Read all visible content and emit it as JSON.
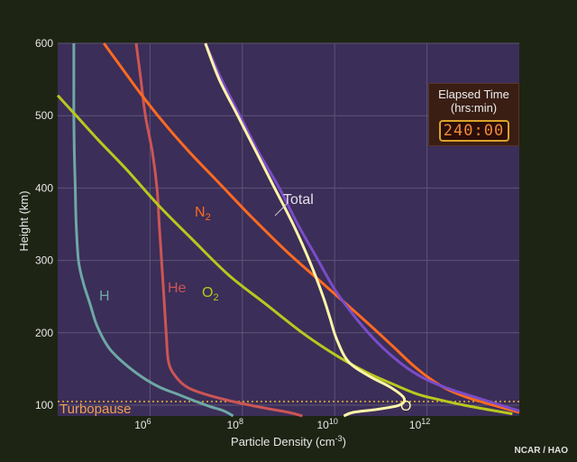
{
  "chart_data": {
    "type": "line",
    "xscale": "log",
    "xlim_exponent": [
      4,
      14
    ],
    "ylim": [
      85,
      600
    ],
    "xlabel": "Particle Density (cm",
    "xlabel_exp": "-3",
    "xlabel_suffix": ")",
    "ylabel": "Height (km)",
    "yticks": [
      "600",
      "500",
      "400",
      "300",
      "200",
      "100"
    ],
    "ytick_values": [
      600,
      500,
      400,
      300,
      200,
      100
    ],
    "xticks": [
      {
        "base": "10",
        "exp": "6",
        "value": 6
      },
      {
        "base": "10",
        "exp": "8",
        "value": 8
      },
      {
        "base": "10",
        "exp": "10",
        "value": 10
      },
      {
        "base": "10",
        "exp": "12",
        "value": 12
      }
    ],
    "turbopause": {
      "label": "Turbopause",
      "height": 105
    },
    "series": [
      {
        "name": "H",
        "color": "#6ea8a4",
        "log_density": [
          4.35,
          4.35,
          4.35,
          4.36,
          4.38,
          4.4,
          4.45,
          4.55,
          4.7,
          4.85,
          5.1,
          5.4,
          5.8,
          6.2,
          6.6,
          7.0,
          7.3,
          7.6,
          7.8
        ],
        "height": [
          600,
          550,
          500,
          450,
          400,
          350,
          300,
          270,
          240,
          210,
          180,
          160,
          140,
          125,
          115,
          105,
          98,
          92,
          85
        ]
      },
      {
        "name": "He",
        "color": "#cc5555",
        "log_density": [
          5.7,
          5.8,
          5.9,
          6.05,
          6.15,
          6.2,
          6.25,
          6.3,
          6.35,
          6.4,
          6.55,
          6.8,
          7.2,
          7.8,
          8.4,
          9.0,
          9.3
        ],
        "height": [
          600,
          550,
          500,
          450,
          400,
          350,
          300,
          250,
          200,
          160,
          140,
          125,
          115,
          105,
          97,
          90,
          85
        ]
      },
      {
        "name": "N2",
        "label_main": "N",
        "label_sub": "2",
        "color": "#ff6a20",
        "log_density": [
          5.0,
          5.4,
          5.8,
          6.3,
          6.85,
          7.45,
          8.2,
          9.0,
          9.8,
          10.6,
          11.2,
          11.7,
          12.1,
          12.5,
          13.0,
          13.6,
          14.0
        ],
        "height": [
          600,
          565,
          530,
          490,
          450,
          410,
          360,
          310,
          265,
          220,
          185,
          155,
          135,
          120,
          108,
          97,
          90
        ]
      },
      {
        "name": "O2",
        "label_main": "O",
        "label_sub": "2",
        "color": "#b8c81e",
        "log_density": [
          4.0,
          4.4,
          4.9,
          5.5,
          6.2,
          6.9,
          7.7,
          8.5,
          9.3,
          10.0,
          10.7,
          11.3,
          11.8,
          12.3,
          12.8,
          13.4,
          13.85
        ],
        "height": [
          528,
          500,
          465,
          425,
          375,
          330,
          280,
          240,
          200,
          170,
          145,
          128,
          115,
          107,
          100,
          93,
          88
        ]
      },
      {
        "name": "O",
        "color": "#fff5a8",
        "log_density": [
          7.2,
          7.5,
          7.9,
          8.3,
          8.7,
          9.1,
          9.45,
          9.75,
          9.9,
          10.05,
          10.3,
          10.75,
          11.2,
          11.5,
          11.4,
          10.9,
          10.4,
          10.2
        ],
        "height": [
          600,
          550,
          500,
          450,
          400,
          350,
          300,
          250,
          220,
          190,
          160,
          140,
          125,
          110,
          100,
          94,
          90,
          85
        ]
      },
      {
        "name": "Total",
        "color": "#7a4cc8",
        "log_density": [
          7.2,
          7.55,
          7.95,
          8.35,
          8.8,
          9.2,
          9.6,
          10.0,
          10.4,
          10.8,
          11.2,
          11.6,
          12.0,
          12.5,
          13.1,
          13.6,
          14.0
        ],
        "height": [
          600,
          550,
          500,
          450,
          400,
          350,
          305,
          260,
          225,
          195,
          170,
          150,
          135,
          122,
          110,
          100,
          92
        ]
      }
    ],
    "annotations": {
      "total": "Total",
      "h": "H",
      "he": "He",
      "o": "O"
    }
  },
  "elapsed": {
    "title": "Elapsed Time",
    "unit": "(hrs:min)",
    "value": "240:00"
  },
  "credit": "NCAR / HAO"
}
